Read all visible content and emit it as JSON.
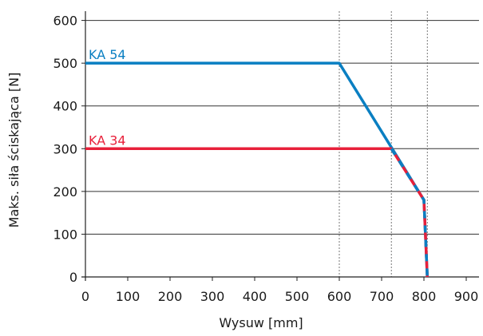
{
  "chart_data": {
    "type": "line",
    "xlabel": "Wysuw [mm]",
    "ylabel": "Maks. siła ściskająca [N]",
    "xlim": [
      0,
      950
    ],
    "ylim": [
      0,
      620
    ],
    "xticks": [
      0,
      100,
      200,
      300,
      400,
      500,
      600,
      700,
      800,
      900
    ],
    "yticks": [
      0,
      100,
      200,
      300,
      400,
      500,
      600
    ],
    "grid": "horizontal",
    "vertical_reference_lines": [
      600,
      723,
      808
    ],
    "series": [
      {
        "name": "KA 54",
        "color": "#0a7fc2",
        "x": [
          0,
          600,
          800,
          808
        ],
        "y": [
          500,
          500,
          180,
          0
        ]
      },
      {
        "name": "KA 34",
        "color": "#e8203a",
        "x": [
          0,
          723,
          800,
          808
        ],
        "y": [
          300,
          300,
          180,
          0
        ]
      }
    ]
  }
}
